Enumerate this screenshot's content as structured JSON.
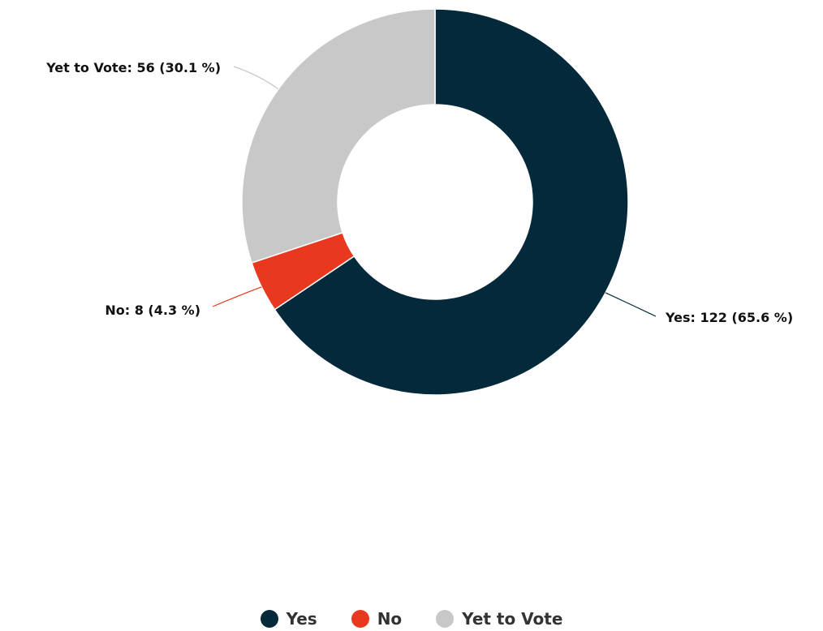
{
  "chart_data": {
    "type": "pie",
    "donut": true,
    "categories": [
      "Yes",
      "No",
      "Yet to Vote"
    ],
    "values": [
      122,
      8,
      56
    ],
    "percentages": [
      65.6,
      4.3,
      30.1
    ],
    "colors": [
      "#04293a",
      "#e8391e",
      "#c8c8c8"
    ],
    "data_labels": [
      "Yes: 122 (65.6 %)",
      "No: 8 (4.3 %)",
      "Yet to Vote: 56 (30.1 %)"
    ],
    "legend": {
      "position": "bottom",
      "entries": [
        "Yes",
        "No",
        "Yet to Vote"
      ]
    }
  }
}
